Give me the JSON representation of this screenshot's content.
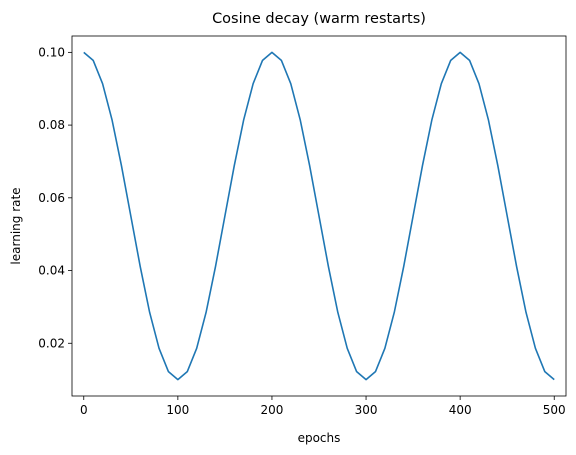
{
  "chart_data": {
    "type": "line",
    "title": "Cosine decay (warm restarts)",
    "xlabel": "epochs",
    "ylabel": "learning rate",
    "xlim": [
      -12.5,
      512.5
    ],
    "ylim": [
      0.0055,
      0.1045
    ],
    "xticks": [
      0,
      100,
      200,
      300,
      400,
      500
    ],
    "xtick_labels": [
      "0",
      "100",
      "200",
      "300",
      "400",
      "500"
    ],
    "yticks": [
      0.02,
      0.04,
      0.06,
      0.08,
      0.1
    ],
    "ytick_labels": [
      "0.02",
      "0.04",
      "0.06",
      "0.08",
      "0.10"
    ],
    "grid": false,
    "series": [
      {
        "color": "#1f77b4",
        "x": [
          0,
          10,
          20,
          30,
          40,
          50,
          60,
          70,
          80,
          90,
          100,
          110,
          120,
          130,
          140,
          150,
          160,
          170,
          180,
          190,
          200,
          210,
          220,
          230,
          240,
          250,
          260,
          270,
          280,
          290,
          300,
          310,
          320,
          330,
          340,
          350,
          360,
          370,
          380,
          390,
          400,
          410,
          420,
          430,
          440,
          450,
          460,
          470,
          480,
          490,
          500
        ],
        "y": [
          0.1,
          0.0978,
          0.0914,
          0.0815,
          0.0689,
          0.055,
          0.0411,
          0.0285,
          0.0186,
          0.0122,
          0.01,
          0.0122,
          0.0186,
          0.0285,
          0.0411,
          0.055,
          0.0689,
          0.0815,
          0.0914,
          0.0978,
          0.1,
          0.0978,
          0.0914,
          0.0815,
          0.0689,
          0.055,
          0.0411,
          0.0285,
          0.0186,
          0.0122,
          0.01,
          0.0122,
          0.0186,
          0.0285,
          0.0411,
          0.055,
          0.0689,
          0.0815,
          0.0914,
          0.0978,
          0.1,
          0.0978,
          0.0914,
          0.0815,
          0.0689,
          0.055,
          0.0411,
          0.0285,
          0.0186,
          0.0122,
          0.01
        ]
      }
    ]
  }
}
